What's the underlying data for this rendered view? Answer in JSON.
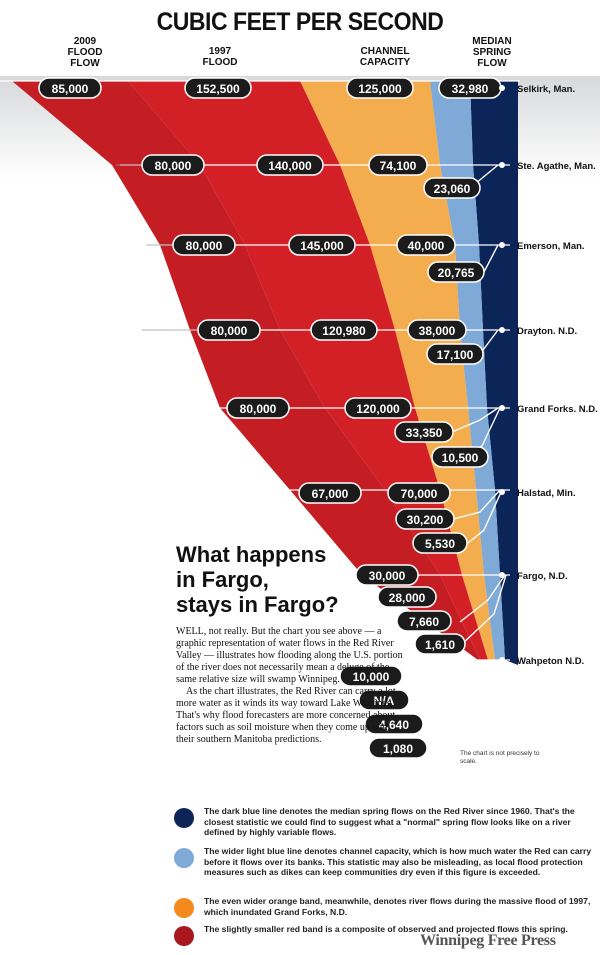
{
  "title": "CUBIC FEET PER SECOND",
  "column_heads": {
    "flood_2009": "2009\nFLOOD\nFLOW",
    "flood_1997": "1997\nFLOOD",
    "capacity": "CHANNEL\nCAPACITY",
    "median": "MEDIAN\nSPRING\nFLOW"
  },
  "chart_data": {
    "type": "area",
    "title": "CUBIC FEET PER SECOND",
    "series": [
      {
        "name": "2009 FLOOD FLOW",
        "color": "#d32027",
        "values": [
          "85,000",
          "80,000",
          "80,000",
          "80,000",
          "80,000",
          "67,000",
          "30,000",
          "10,000"
        ]
      },
      {
        "name": "1997 FLOOD",
        "color": "#f3ad4e",
        "values": [
          "152,500",
          "140,000",
          "145,000",
          "120,980",
          "120,000",
          "70,000",
          "28,000",
          "N/A"
        ]
      },
      {
        "name": "CHANNEL CAPACITY",
        "color": "#7fa9d6",
        "values": [
          "125,000",
          "74,100",
          "40,000",
          "38,000",
          "33,350",
          "30,200",
          "7,660",
          "4,640"
        ]
      },
      {
        "name": "MEDIAN SPRING FLOW",
        "color": "#0b2559",
        "values": [
          "32,980",
          "23,060",
          "20,765",
          "17,100",
          "10,500",
          "5,530",
          "1,610",
          "1,080"
        ]
      }
    ],
    "locations": [
      "Selkirk, Man.",
      "Ste. Agathe, Man.",
      "Emerson, Man.",
      "Drayton. N.D.",
      "Grand Forks. N.D.",
      "Halstad, Min.",
      "Fargo, N.D.",
      "Wahpeton N.D."
    ]
  },
  "article": {
    "headline": "What happens\nin Fargo,\nstays in Fargo?",
    "paragraph_1": "WELL, not really. But the chart you see above — a graphic representation of water flows in the Red River Valley — illustrates how flooding along the U.S. portion of the river does not necessarily mean a deluge of the same relative size will swamp Winnipeg.",
    "paragraph_2": "As the chart illustrates, the Red River can carry a lot more water as it winds its way toward Lake Winnipeg. That's why flood forecasters are more concerned about factors such as soil moisture when they come up with their southern Manitoba predictions."
  },
  "scale_note": "The chart is not precisely to scale.",
  "legend": [
    {
      "color": "#0b2559",
      "text": "The dark blue line denotes the median spring flows on the Red River since 1960. That's the closest statistic we could find to suggest what a \"normal\" spring flow looks like on a river defined by highly variable flows."
    },
    {
      "color": "#7fa9d6",
      "text": "The wider light blue line denotes channel capacity, which is how much water the Red can carry before it flows over its banks. This statistic may also be misleading, as local flood protection measures such as dikes can keep communities dry even if this figure is exceeded."
    },
    {
      "color": "#f28a1e",
      "text": "The even wider orange band, meanwhile, denotes river flows during the massive flood of 1997, which inundated Grand Forks, N.D."
    },
    {
      "color": "#a8171c",
      "text": "The slightly smaller red band is a composite of observed and projected flows this spring."
    }
  ],
  "credit": "Winnipeg Free Press"
}
